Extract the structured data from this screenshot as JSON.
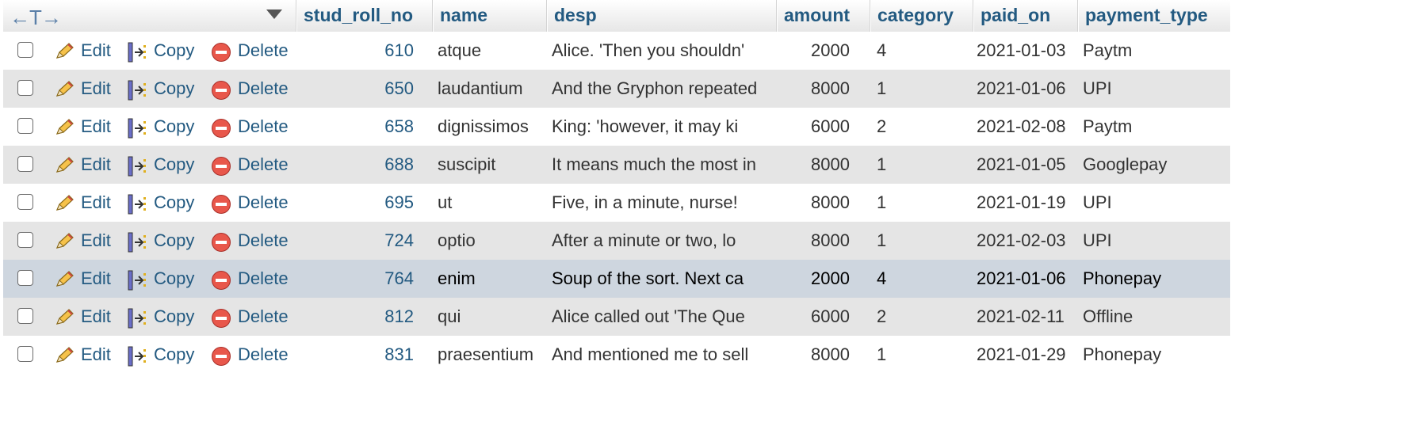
{
  "actions": {
    "edit_label": "Edit",
    "copy_label": "Copy",
    "delete_label": "Delete"
  },
  "header": {
    "arrows": "←T→",
    "columns": [
      "stud_roll_no",
      "name",
      "desp",
      "amount",
      "category",
      "paid_on",
      "payment_type"
    ]
  },
  "rows": [
    {
      "stud_roll_no": "610",
      "name": "atque",
      "desp": "Alice. 'Then you shouldn'",
      "amount": "2000",
      "category": "4",
      "paid_on": "2021-01-03",
      "payment_type": "Paytm"
    },
    {
      "stud_roll_no": "650",
      "name": "laudantium",
      "desp": "And the Gryphon repeated",
      "amount": "8000",
      "category": "1",
      "paid_on": "2021-01-06",
      "payment_type": "UPI"
    },
    {
      "stud_roll_no": "658",
      "name": "dignissimos",
      "desp": "King: 'however, it may ki",
      "amount": "6000",
      "category": "2",
      "paid_on": "2021-02-08",
      "payment_type": "Paytm"
    },
    {
      "stud_roll_no": "688",
      "name": "suscipit",
      "desp": "It means much the most in",
      "amount": "8000",
      "category": "1",
      "paid_on": "2021-01-05",
      "payment_type": "Googlepay"
    },
    {
      "stud_roll_no": "695",
      "name": "ut",
      "desp": "Five, in a minute, nurse!",
      "amount": "8000",
      "category": "1",
      "paid_on": "2021-01-19",
      "payment_type": "UPI"
    },
    {
      "stud_roll_no": "724",
      "name": "optio",
      "desp": "After a minute or two, lo",
      "amount": "8000",
      "category": "1",
      "paid_on": "2021-02-03",
      "payment_type": "UPI"
    },
    {
      "stud_roll_no": "764",
      "name": "enim",
      "desp": "Soup of the sort. Next ca",
      "amount": "2000",
      "category": "4",
      "paid_on": "2021-01-06",
      "payment_type": "Phonepay"
    },
    {
      "stud_roll_no": "812",
      "name": "qui",
      "desp": "Alice called out 'The Que",
      "amount": "6000",
      "category": "2",
      "paid_on": "2021-02-11",
      "payment_type": "Offline"
    },
    {
      "stud_roll_no": "831",
      "name": "praesentium",
      "desp": "And mentioned me to sell",
      "amount": "8000",
      "category": "1",
      "paid_on": "2021-01-29",
      "payment_type": "Phonepay"
    }
  ],
  "colors": {
    "link": "#235a81",
    "row_alt": "#e5e5e5",
    "row_marked": "#ced6df"
  }
}
